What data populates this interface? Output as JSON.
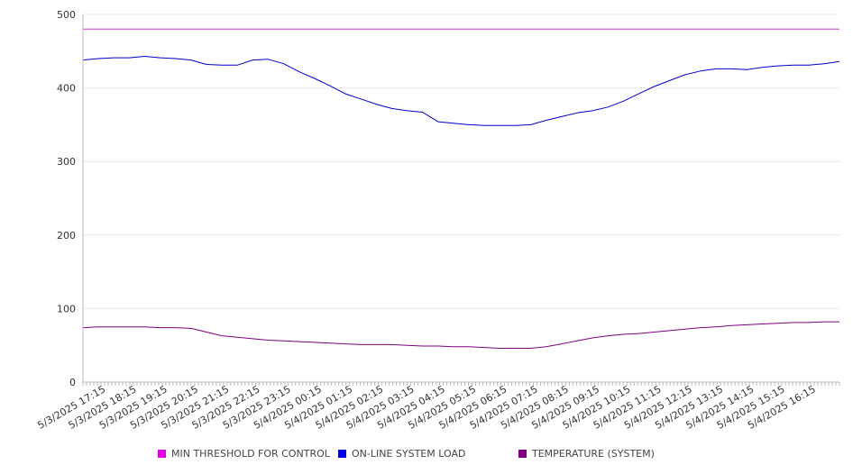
{
  "chart_data": {
    "type": "line",
    "title": "",
    "xlabel": "",
    "ylabel": "",
    "ylim": [
      0,
      500
    ],
    "yticks": [
      0,
      100,
      200,
      300,
      400,
      500
    ],
    "grid": true,
    "legend_position": "bottom",
    "x_tick_labels": [
      "5/3/2025 17:15",
      "5/3/2025 18:15",
      "5/3/2025 19:15",
      "5/3/2025 20:15",
      "5/3/2025 21:15",
      "5/3/2025 22:15",
      "5/3/2025 23:15",
      "5/4/2025 00:15",
      "5/4/2025 01:15",
      "5/4/2025 02:15",
      "5/4/2025 03:15",
      "5/4/2025 04:15",
      "5/4/2025 05:15",
      "5/4/2025 06:15",
      "5/4/2025 07:15",
      "5/4/2025 08:15",
      "5/4/2025 09:15",
      "5/4/2025 10:15",
      "5/4/2025 11:15",
      "5/4/2025 12:15",
      "5/4/2025 13:15",
      "5/4/2025 14:15",
      "5/4/2025 15:15",
      "5/4/2025 16:15"
    ],
    "x": [
      "5/3/2025 16:30",
      "5/3/2025 17:00",
      "5/3/2025 17:30",
      "5/3/2025 18:00",
      "5/3/2025 18:30",
      "5/3/2025 19:00",
      "5/3/2025 19:30",
      "5/3/2025 20:00",
      "5/3/2025 20:30",
      "5/3/2025 21:00",
      "5/3/2025 21:30",
      "5/3/2025 22:00",
      "5/3/2025 22:30",
      "5/3/2025 23:00",
      "5/3/2025 23:30",
      "5/4/2025 00:00",
      "5/4/2025 00:30",
      "5/4/2025 01:00",
      "5/4/2025 01:30",
      "5/4/2025 02:00",
      "5/4/2025 02:30",
      "5/4/2025 03:00",
      "5/4/2025 03:30",
      "5/4/2025 04:00",
      "5/4/2025 04:30",
      "5/4/2025 05:00",
      "5/4/2025 05:30",
      "5/4/2025 06:00",
      "5/4/2025 06:30",
      "5/4/2025 07:00",
      "5/4/2025 07:30",
      "5/4/2025 08:00",
      "5/4/2025 08:30",
      "5/4/2025 09:00",
      "5/4/2025 09:30",
      "5/4/2025 10:00",
      "5/4/2025 10:30",
      "5/4/2025 11:00",
      "5/4/2025 11:30",
      "5/4/2025 12:00",
      "5/4/2025 12:30",
      "5/4/2025 13:00",
      "5/4/2025 13:30",
      "5/4/2025 14:00",
      "5/4/2025 14:30",
      "5/4/2025 15:00",
      "5/4/2025 15:30",
      "5/4/2025 16:00",
      "5/4/2025 16:30",
      "5/4/2025 17:00"
    ],
    "series": [
      {
        "name": "MIN THRESHOLD FOR CONTROL",
        "color": "#cc33cc",
        "values": [
          480,
          480,
          480,
          480,
          480,
          480,
          480,
          480,
          480,
          480,
          480,
          480,
          480,
          480,
          480,
          480,
          480,
          480,
          480,
          480,
          480,
          480,
          480,
          480,
          480,
          480,
          480,
          480,
          480,
          480,
          480,
          480,
          480,
          480,
          480,
          480,
          480,
          480,
          480,
          480,
          480,
          480,
          480,
          480,
          480,
          480,
          480,
          480,
          480,
          480
        ]
      },
      {
        "name": "ON-LINE SYSTEM LOAD",
        "color": "#0000cc",
        "values": [
          438,
          440,
          441,
          441,
          443,
          441,
          440,
          438,
          432,
          431,
          431,
          438,
          439,
          433,
          422,
          413,
          403,
          392,
          385,
          378,
          372,
          369,
          367,
          354,
          352,
          350,
          349,
          349,
          349,
          350,
          356,
          361,
          366,
          369,
          374,
          382,
          392,
          402,
          410,
          418,
          423,
          426,
          426,
          425,
          428,
          430,
          431,
          431,
          433,
          436
        ]
      },
      {
        "name": "TEMPERATURE (SYSTEM)",
        "color": "#800080",
        "values": [
          74,
          75,
          75,
          75,
          75,
          74,
          74,
          73,
          68,
          63,
          61,
          59,
          57,
          56,
          55,
          54,
          53,
          52,
          51,
          51,
          51,
          50,
          49,
          49,
          48,
          48,
          47,
          46,
          46,
          46,
          48,
          52,
          56,
          60,
          63,
          65,
          66,
          68,
          70,
          72,
          74,
          75,
          77,
          78,
          79,
          80,
          81,
          81,
          82,
          82
        ]
      }
    ]
  }
}
